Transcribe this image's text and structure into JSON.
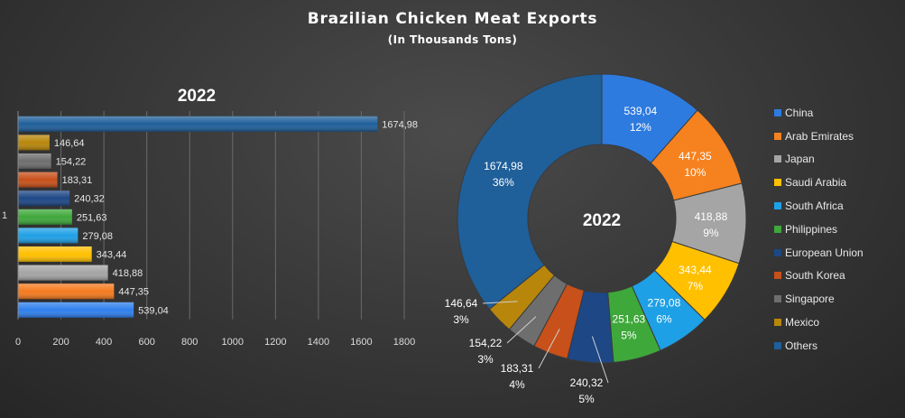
{
  "title": "Brazilian  Chicken  Meat  Exports",
  "subtitle": "(In Thousands Tons)",
  "chart_data": [
    {
      "type": "bar",
      "orientation": "horizontal",
      "title": "2022",
      "category_label": "1",
      "xlim": [
        0,
        1800
      ],
      "x_ticks": [
        "0",
        "200",
        "400",
        "600",
        "800",
        "1000",
        "1200",
        "1400",
        "1600",
        "1800"
      ],
      "grid": true,
      "bars": [
        {
          "key": "others",
          "value": 1674.98,
          "label": "1674,98",
          "color": "#1f5f9a"
        },
        {
          "key": "mexico",
          "value": 146.64,
          "label": "146,64",
          "color": "#b8860b"
        },
        {
          "key": "singapore",
          "value": 154.22,
          "label": "154,22",
          "color": "#6e6e6e"
        },
        {
          "key": "south-korea",
          "value": 183.31,
          "label": "183,31",
          "color": "#c8501a"
        },
        {
          "key": "european-union",
          "value": 240.32,
          "label": "240,32",
          "color": "#1d4785"
        },
        {
          "key": "philippines",
          "value": 251.63,
          "label": "251,63",
          "color": "#3ea83a"
        },
        {
          "key": "south-africa",
          "value": 279.08,
          "label": "279,08",
          "color": "#1ea0e6"
        },
        {
          "key": "saudi-arabia",
          "value": 343.44,
          "label": "343,44",
          "color": "#ffc000"
        },
        {
          "key": "japan",
          "value": 418.88,
          "label": "418,88",
          "color": "#a5a5a5"
        },
        {
          "key": "arab-emirates",
          "value": 447.35,
          "label": "447,35",
          "color": "#f47a1f"
        },
        {
          "key": "china",
          "value": 539.04,
          "label": "539,04",
          "color": "#2f80ed"
        }
      ]
    },
    {
      "type": "pie",
      "variant": "donut",
      "center_label": "2022",
      "legend_position": "right",
      "slices": [
        {
          "name": "China",
          "value": 539.04,
          "value_label": "539,04",
          "percent": "12%",
          "color": "#2e7be0"
        },
        {
          "name": "Arab Emirates",
          "value": 447.35,
          "value_label": "447,35",
          "percent": "10%",
          "color": "#f5821f"
        },
        {
          "name": "Japan",
          "value": 418.88,
          "value_label": "418,88",
          "percent": "9%",
          "color": "#a5a5a5"
        },
        {
          "name": "Saudi Arabia",
          "value": 343.44,
          "value_label": "343,44",
          "percent": "7%",
          "color": "#ffc000"
        },
        {
          "name": "South Africa",
          "value": 279.08,
          "value_label": "279,08",
          "percent": "6%",
          "color": "#1ea0e6"
        },
        {
          "name": "Philippines",
          "value": 251.63,
          "value_label": "251,63",
          "percent": "5%",
          "color": "#3ea83a"
        },
        {
          "name": "European Union",
          "value": 240.32,
          "value_label": "240,32",
          "percent": "5%",
          "color": "#1d4785"
        },
        {
          "name": "South Korea",
          "value": 183.31,
          "value_label": "183,31",
          "percent": "4%",
          "color": "#c8501a"
        },
        {
          "name": "Singapore",
          "value": 154.22,
          "value_label": "154,22",
          "percent": "3%",
          "color": "#6e6e6e"
        },
        {
          "name": "Mexico",
          "value": 146.64,
          "value_label": "146,64",
          "percent": "3%",
          "color": "#b8860b"
        },
        {
          "name": "Others",
          "value": 1674.98,
          "value_label": "1674,98",
          "percent": "36%",
          "color": "#1f5f9a"
        }
      ]
    }
  ]
}
